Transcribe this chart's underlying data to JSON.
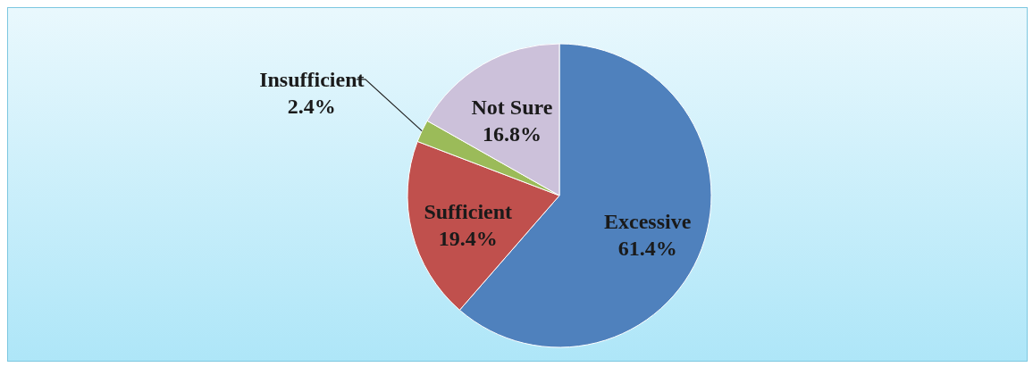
{
  "chart_data": {
    "type": "pie",
    "categories": [
      "Excessive",
      "Sufficient",
      "Insufficient",
      "Not Sure"
    ],
    "values": [
      61.4,
      19.4,
      2.4,
      16.8
    ],
    "colors": [
      "#4f81bd",
      "#c0504d",
      "#9bbb59",
      "#ccc1da"
    ],
    "value_labels": [
      "61.4%",
      "19.4%",
      "2.4%",
      "16.8%"
    ]
  }
}
